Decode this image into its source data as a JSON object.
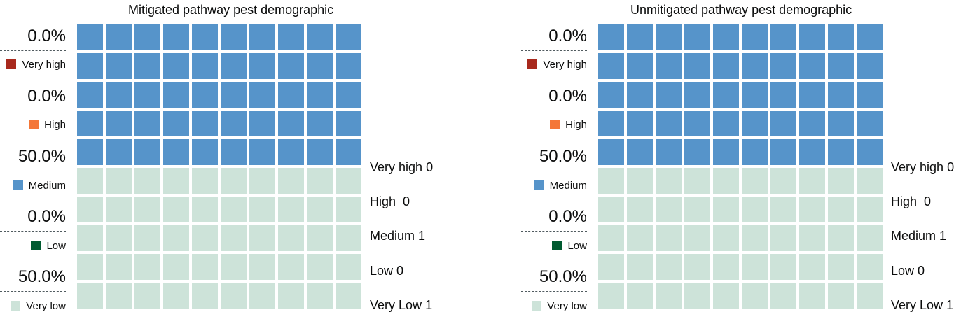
{
  "colors": {
    "very_high": "#a8291d",
    "high": "#f47738",
    "medium": "#5694ca",
    "low": "#005a30",
    "very_low": "#cde3d9"
  },
  "legend": {
    "very_high": "Very high",
    "high": "High",
    "medium": "Medium",
    "low": "Low",
    "very_low": "Very low"
  },
  "chart_data": [
    {
      "type": "waffle",
      "title": "Mitigated pathway pest demographic",
      "grid": {
        "rows": 10,
        "cols": 10
      },
      "percentages": [
        "0.0%",
        "0.0%",
        "50.0%",
        "0.0%",
        "50.0%"
      ],
      "categories": [
        "Very high",
        "High",
        "Medium",
        "Low",
        "Very low"
      ],
      "cells": [
        0,
        0,
        50,
        0,
        50
      ],
      "counts": [
        {
          "label": "Very high",
          "value": 0
        },
        {
          "label": "High",
          "value": 0
        },
        {
          "label": "Medium",
          "value": 1
        },
        {
          "label": "Low",
          "value": 0
        },
        {
          "label": "Very Low",
          "value": 1
        }
      ]
    },
    {
      "type": "waffle",
      "title": "Unmitigated pathway pest demographic",
      "grid": {
        "rows": 10,
        "cols": 10
      },
      "percentages": [
        "0.0%",
        "0.0%",
        "50.0%",
        "0.0%",
        "50.0%"
      ],
      "categories": [
        "Very high",
        "High",
        "Medium",
        "Low",
        "Very low"
      ],
      "cells": [
        0,
        0,
        50,
        0,
        50
      ],
      "counts": [
        {
          "label": "Very high",
          "value": 0
        },
        {
          "label": "High",
          "value": 0
        },
        {
          "label": "Medium",
          "value": 1
        },
        {
          "label": "Low",
          "value": 0
        },
        {
          "label": "Very Low",
          "value": 1
        }
      ]
    }
  ]
}
